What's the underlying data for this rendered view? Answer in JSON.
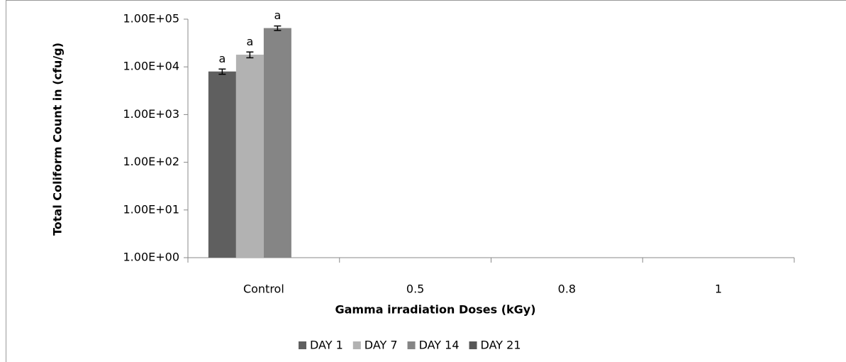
{
  "chart_data": {
    "type": "bar",
    "log_scale": true,
    "y_label": "Total Coliform Count in  (cfu/g)",
    "x_label": "Gamma irradiation  Doses (kGy)",
    "categories": [
      "Control",
      "0.5",
      "0.8",
      "1"
    ],
    "series": [
      {
        "name": "DAY 1",
        "color": "#5f5f5f",
        "values": [
          8000,
          null,
          null,
          null
        ],
        "errors": [
          1000,
          null,
          null,
          null
        ],
        "annotations": [
          "a",
          null,
          null,
          null
        ]
      },
      {
        "name": "DAY 7",
        "color": "#b2b2b2",
        "values": [
          18000,
          null,
          null,
          null
        ],
        "errors": [
          2500,
          null,
          null,
          null
        ],
        "annotations": [
          "a",
          null,
          null,
          null
        ]
      },
      {
        "name": "DAY 14",
        "color": "#858585",
        "values": [
          65000,
          null,
          null,
          null
        ],
        "errors": [
          7000,
          null,
          null,
          null
        ],
        "annotations": [
          "a",
          null,
          null,
          null
        ]
      },
      {
        "name": "DAY 21",
        "color": "#575757",
        "values": [
          null,
          null,
          null,
          null
        ]
      }
    ],
    "ylim": [
      1,
      100000
    ],
    "yticks": [
      {
        "value": 1,
        "label": "1.00E+00"
      },
      {
        "value": 10,
        "label": "1.00E+01"
      },
      {
        "value": 100,
        "label": "1.00E+02"
      },
      {
        "value": 1000,
        "label": "1.00E+03"
      },
      {
        "value": 10000,
        "label": "1.00E+04"
      },
      {
        "value": 100000,
        "label": "1.00E+05"
      }
    ],
    "legend": "bottom"
  }
}
